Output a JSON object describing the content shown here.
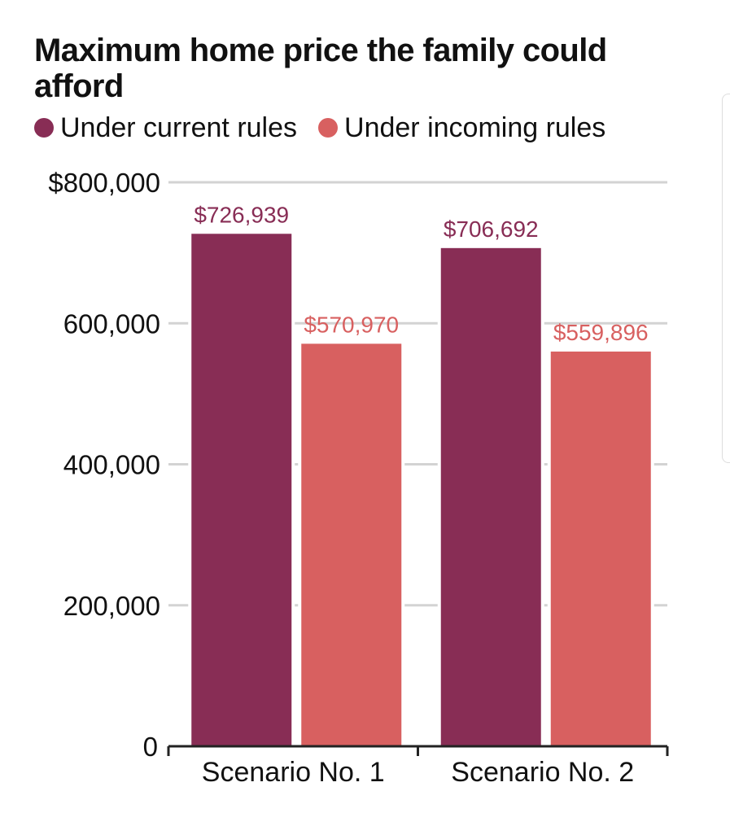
{
  "colors": {
    "current": "#882d55",
    "incoming": "#d86060",
    "grid": "#d3d3d3",
    "axis": "#222222",
    "text": "#111111"
  },
  "legend": [
    {
      "label": "Under current rules",
      "color": "#882d55"
    },
    {
      "label": "Under incoming rules",
      "color": "#d86060"
    }
  ],
  "chart_data": {
    "type": "bar",
    "title": "Maximum home price the family could afford",
    "categories": [
      "Scenario No. 1",
      "Scenario No. 2"
    ],
    "series": [
      {
        "name": "Under current rules",
        "values": [
          726939,
          706692
        ],
        "labels": [
          "$726,939",
          "$706,692"
        ]
      },
      {
        "name": "Under incoming rules",
        "values": [
          570970,
          559896
        ],
        "labels": [
          "$570,970",
          "$559,896"
        ]
      }
    ],
    "ylim": [
      0,
      800000
    ],
    "yticks": [
      0,
      200000,
      400000,
      600000,
      800000
    ],
    "ytick_labels": [
      "0",
      "200,000",
      "400,000",
      "600,000",
      "$800,000"
    ],
    "xlabel": "",
    "ylabel": "",
    "grid": true,
    "legend_position": "top-left"
  }
}
